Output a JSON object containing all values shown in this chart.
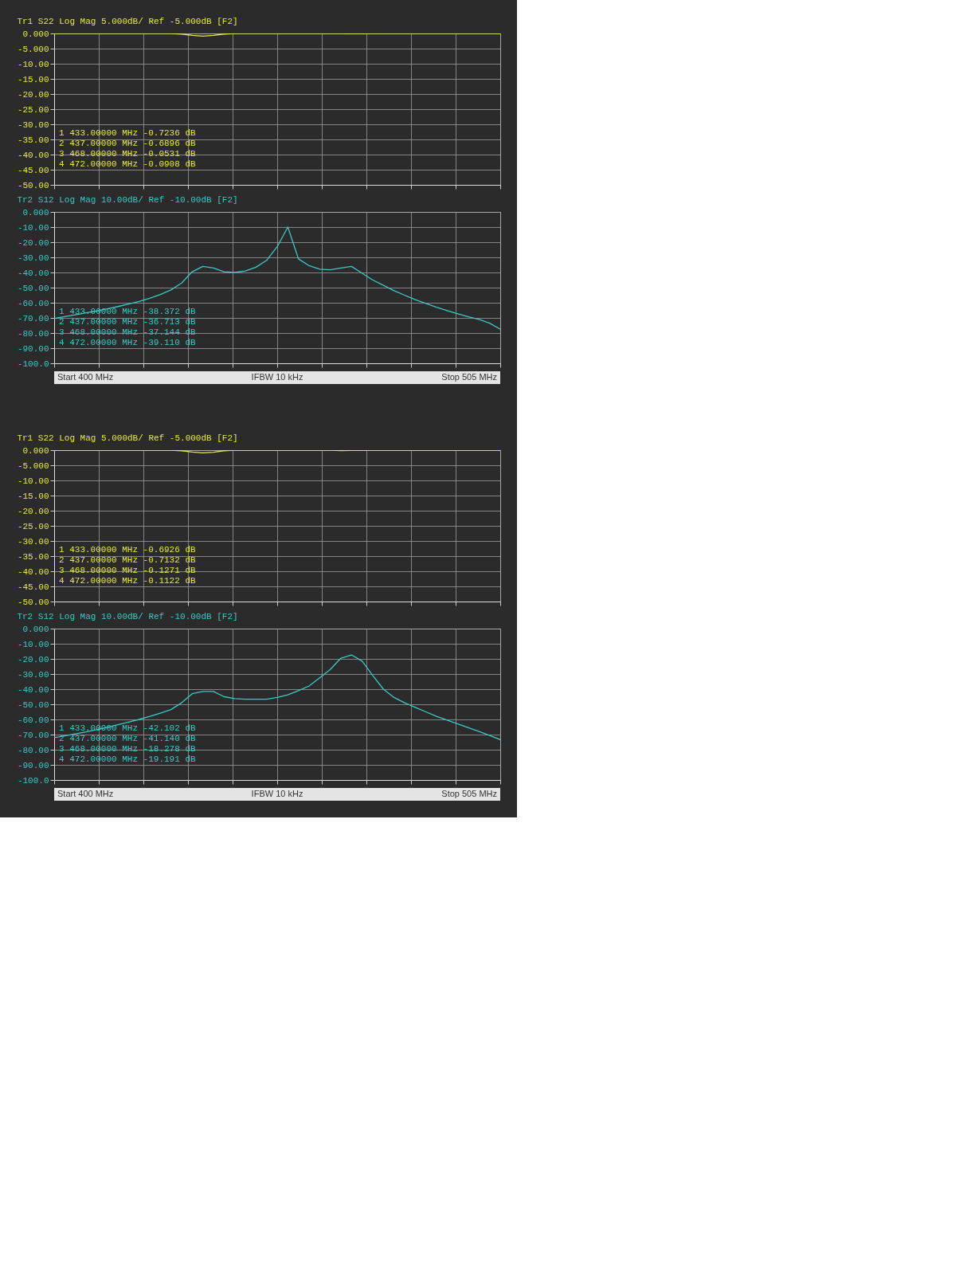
{
  "chart_data": [
    {
      "type": "line",
      "title": "Tr1 S22 Log Mag 5.000dB/ Ref -5.000dB [F2]",
      "ylim": [
        -50,
        0
      ],
      "categories": [
        null,
        null,
        null,
        null,
        null,
        null,
        null,
        null,
        null,
        null,
        null,
        null,
        null,
        null,
        null,
        null,
        null,
        null,
        null,
        null,
        null,
        null,
        null,
        null,
        null,
        null,
        null,
        null,
        null,
        null,
        null,
        null,
        null,
        null,
        null,
        null,
        null,
        null,
        null,
        null,
        null,
        null,
        null
      ],
      "yticks": [
        {
          "value": 0,
          "label": "0.000"
        },
        {
          "value": -5,
          "label": "-5.000"
        },
        {
          "value": -10,
          "label": "-10.00"
        },
        {
          "value": -15,
          "label": "-15.00"
        },
        {
          "value": -20,
          "label": "-20.00"
        },
        {
          "value": -25,
          "label": "-25.00"
        },
        {
          "value": -30,
          "label": "-30.00"
        },
        {
          "value": -35,
          "label": "-35.00"
        },
        {
          "value": -40,
          "label": "-40.00"
        },
        {
          "value": -45,
          "label": "-45.00"
        },
        {
          "value": -50,
          "label": "-50.00"
        }
      ],
      "tick_labels": "y",
      "grid": true,
      "series": [
        {
          "color": "#e6e64a",
          "values": [
            0,
            0,
            0,
            0,
            0,
            0,
            0,
            0,
            0,
            0,
            0,
            0,
            -0.2,
            -0.6,
            -0.9,
            -0.65,
            -0.2,
            -0.05,
            0,
            0,
            0,
            0,
            0,
            0,
            0,
            0,
            0,
            -0.05,
            -0.07,
            -0.09,
            -0.03,
            0,
            0,
            0,
            0,
            0,
            0,
            0,
            0,
            0,
            0,
            0,
            0
          ]
        }
      ],
      "annotations": [
        "1  433.00000 MHz -0.7236 dB",
        "2  437.00000 MHz -0.6896 dB",
        "3  468.00000 MHz -0.0531 dB",
        "4  472.00000 MHz -0.0908 dB"
      ]
    },
    {
      "type": "line",
      "title": "Tr2 S12 Log Mag 10.00dB/ Ref -10.00dB [F2]",
      "ylim": [
        -100,
        0
      ],
      "categories": [
        null,
        null,
        null,
        null,
        null,
        null,
        null,
        null,
        null,
        null,
        null,
        null,
        null,
        null,
        null,
        null,
        null,
        null,
        null,
        null,
        null,
        null,
        null,
        null,
        null,
        null,
        null,
        null,
        null,
        null,
        null,
        null,
        null,
        null,
        null,
        null,
        null,
        null,
        null,
        null,
        null,
        null,
        null
      ],
      "yticks": [
        {
          "value": 0,
          "label": "0.000"
        },
        {
          "value": -10,
          "label": "-10.00"
        },
        {
          "value": -20,
          "label": "-20.00"
        },
        {
          "value": -30,
          "label": "-30.00"
        },
        {
          "value": -40,
          "label": "-40.00"
        },
        {
          "value": -50,
          "label": "-50.00"
        },
        {
          "value": -60,
          "label": "-60.00"
        },
        {
          "value": -70,
          "label": "-70.00"
        },
        {
          "value": -80,
          "label": "-80.00"
        },
        {
          "value": -90,
          "label": "-90.00"
        },
        {
          "value": -100,
          "label": "-100.0"
        }
      ],
      "tick_labels": "y",
      "grid": true,
      "series": [
        {
          "color": "#3cc8c8",
          "values": [
            -70.4,
            -69.2,
            -68,
            -66.7,
            -65.5,
            -64,
            -62.5,
            -60.8,
            -59.1,
            -57,
            -54.5,
            -51.5,
            -47,
            -39.5,
            -36,
            -37,
            -39.5,
            -40,
            -39,
            -36.5,
            -32,
            -23,
            -10,
            -31,
            -35.5,
            -37.8,
            -38.2,
            -37,
            -36,
            -40.5,
            -45,
            -48.5,
            -52,
            -55,
            -58,
            -60.5,
            -63,
            -65.2,
            -67.3,
            -69.3,
            -71,
            -73.5,
            -77.5
          ]
        }
      ],
      "annotations": [
        "1  433.00000 MHz -38.372 dB",
        "2  437.00000 MHz -36.713 dB",
        "3  468.00000 MHz -37.144 dB",
        "4  472.00000 MHz -39.110 dB",
        "Start 400 MHz",
        "IFBW 10 kHz",
        "Stop 505 MHz"
      ]
    },
    {
      "type": "line",
      "title": "Tr1 S22 Log Mag 5.000dB/ Ref -5.000dB [F2]",
      "ylim": [
        -50,
        0
      ],
      "categories": [
        null,
        null,
        null,
        null,
        null,
        null,
        null,
        null,
        null,
        null,
        null,
        null,
        null,
        null,
        null,
        null,
        null,
        null,
        null,
        null,
        null,
        null,
        null,
        null,
        null,
        null,
        null,
        null,
        null,
        null,
        null,
        null,
        null,
        null,
        null,
        null,
        null,
        null,
        null,
        null,
        null,
        null,
        null
      ],
      "yticks": [
        {
          "value": 0,
          "label": "0.000"
        },
        {
          "value": -5,
          "label": "-5.000"
        },
        {
          "value": -10,
          "label": "-10.00"
        },
        {
          "value": -15,
          "label": "-15.00"
        },
        {
          "value": -20,
          "label": "-20.00"
        },
        {
          "value": -25,
          "label": "-25.00"
        },
        {
          "value": -30,
          "label": "-30.00"
        },
        {
          "value": -35,
          "label": "-35.00"
        },
        {
          "value": -40,
          "label": "-40.00"
        },
        {
          "value": -45,
          "label": "-45.00"
        },
        {
          "value": -50,
          "label": "-50.00"
        }
      ],
      "tick_labels": "y",
      "grid": true,
      "series": [
        {
          "color": "#e6e64a",
          "values": [
            0,
            0,
            0,
            0,
            0,
            0,
            0,
            0,
            0,
            0,
            0,
            0,
            -0.2,
            -0.6,
            -0.9,
            -0.7,
            -0.2,
            -0.05,
            0,
            0,
            0,
            0,
            0,
            0,
            0,
            0,
            0,
            -0.13,
            -0.12,
            -0.11,
            -0.03,
            0,
            0,
            0,
            0,
            0,
            0,
            0,
            0,
            0,
            0,
            0,
            0
          ]
        }
      ],
      "annotations": [
        "1  433.00000 MHz -0.6926 dB",
        "2  437.00000 MHz -0.7132 dB",
        "3  468.00000 MHz -0.1271 dB",
        "4  472.00000 MHz -0.1122 dB"
      ]
    },
    {
      "type": "line",
      "title": "Tr2 S12 Log Mag 10.00dB/ Ref -10.00dB [F2]",
      "ylim": [
        -100,
        0
      ],
      "categories": [
        null,
        null,
        null,
        null,
        null,
        null,
        null,
        null,
        null,
        null,
        null,
        null,
        null,
        null,
        null,
        null,
        null,
        null,
        null,
        null,
        null,
        null,
        null,
        null,
        null,
        null,
        null,
        null,
        null,
        null,
        null,
        null,
        null,
        null,
        null,
        null,
        null,
        null,
        null,
        null,
        null,
        null,
        null
      ],
      "yticks": [
        {
          "value": 0,
          "label": "0.000"
        },
        {
          "value": -10,
          "label": "-10.00"
        },
        {
          "value": -20,
          "label": "-20.00"
        },
        {
          "value": -30,
          "label": "-30.00"
        },
        {
          "value": -40,
          "label": "-40.00"
        },
        {
          "value": -50,
          "label": "-50.00"
        },
        {
          "value": -60,
          "label": "-60.00"
        },
        {
          "value": -70,
          "label": "-70.00"
        },
        {
          "value": -80,
          "label": "-80.00"
        },
        {
          "value": -90,
          "label": "-90.00"
        },
        {
          "value": -100,
          "label": "-100.0"
        }
      ],
      "tick_labels": "y",
      "grid": true,
      "series": [
        {
          "color": "#3cc8c8",
          "values": [
            -72,
            -70.8,
            -69.5,
            -68.2,
            -66.8,
            -65.2,
            -63.5,
            -61.8,
            -60,
            -58,
            -55.8,
            -53.5,
            -49,
            -43,
            -41.5,
            -41.5,
            -45,
            -46.3,
            -46.6,
            -46.6,
            -46.6,
            -45.5,
            -43.7,
            -41,
            -37.9,
            -32.5,
            -27,
            -19.5,
            -17.4,
            -21.5,
            -31,
            -40,
            -45.5,
            -49,
            -52,
            -55,
            -58,
            -60.5,
            -63,
            -65.5,
            -68,
            -70.6,
            -73.3
          ]
        }
      ],
      "annotations": [
        "1  433.00000 MHz -42.102 dB",
        "2  437.00000 MHz -41.140 dB",
        "3  468.00000 MHz -18.278 dB",
        "4  472.00000 MHz -19.191 dB",
        "Start 400 MHz",
        "IFBW 10 kHz",
        "Stop 505 MHz"
      ]
    }
  ]
}
